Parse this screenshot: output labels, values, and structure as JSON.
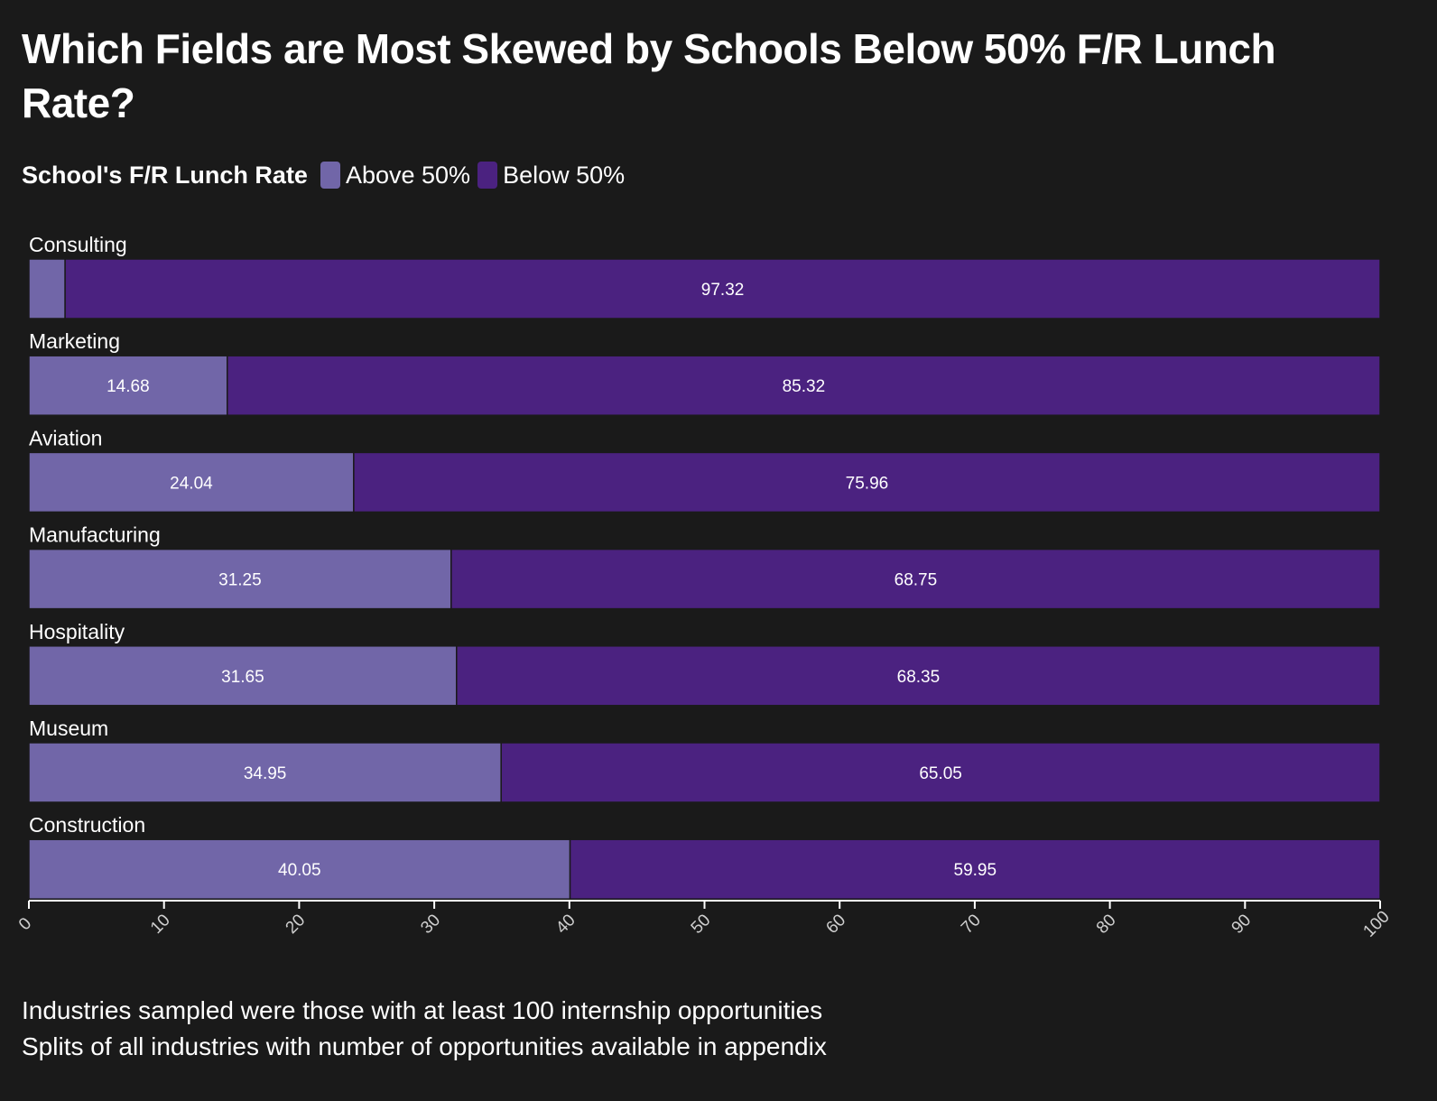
{
  "title": "Which Fields are Most Skewed by Schools Below 50% F/R Lunch Rate?",
  "legend": {
    "title": "School's F/R Lunch Rate",
    "items": [
      {
        "label": "Above 50%",
        "color": "#7166a8"
      },
      {
        "label": "Below 50%",
        "color": "#4b2280"
      }
    ]
  },
  "chart_data": {
    "type": "bar",
    "orientation": "horizontal",
    "stacked": true,
    "categories": [
      "Consulting",
      "Marketing",
      "Aviation",
      "Manufacturing",
      "Hospitality",
      "Museum",
      "Construction"
    ],
    "series": [
      {
        "name": "Above 50%",
        "color": "#7166a8",
        "values": [
          2.68,
          14.68,
          24.04,
          31.25,
          31.65,
          34.95,
          40.05
        ],
        "labels": [
          "",
          "14.68",
          "24.04",
          "31.25",
          "31.65",
          "34.95",
          "40.05"
        ]
      },
      {
        "name": "Below 50%",
        "color": "#4b2280",
        "values": [
          97.32,
          85.32,
          75.96,
          68.75,
          68.35,
          65.05,
          59.95
        ],
        "labels": [
          "97.32",
          "85.32",
          "75.96",
          "68.75",
          "68.35",
          "65.05",
          "59.95"
        ]
      }
    ],
    "xlim": [
      0,
      100
    ],
    "xticks": [
      "0",
      "10",
      "20",
      "30",
      "40",
      "50",
      "60",
      "70",
      "80",
      "90",
      "100"
    ],
    "grid": false,
    "legend_position": "top-left"
  },
  "footnotes": [
    "Industries sampled were those with at least 100 internship opportunities",
    "Splits of all industries with number of opportunities available in appendix"
  ]
}
